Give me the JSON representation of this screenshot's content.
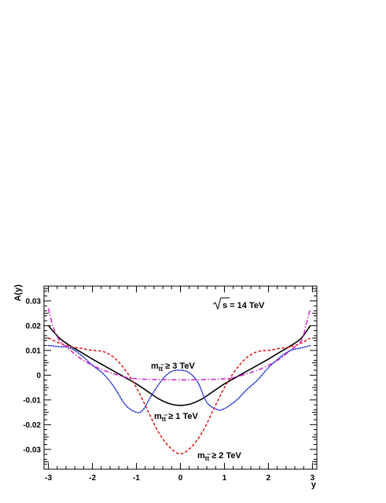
{
  "chart_data": {
    "type": "line",
    "xlabel": "y",
    "ylabel": "A(y)",
    "xlim": [
      -3.1,
      3.1
    ],
    "ylim": [
      -0.038,
      0.036
    ],
    "x_ticks": [
      -3,
      -2,
      -1,
      0,
      1,
      2,
      3
    ],
    "x_tick_labels": [
      "-3",
      "-2",
      "-1",
      "0",
      "1",
      "2",
      "3"
    ],
    "y_ticks": [
      -0.03,
      -0.02,
      -0.01,
      0,
      0.01,
      0.02,
      0.03
    ],
    "y_tick_labels": [
      "-0.03",
      "-0.02",
      "-0.01",
      "0",
      "0.01",
      "0.02",
      "0.03"
    ],
    "grid": false,
    "annotations": {
      "energy": {
        "prefix": "s",
        "suffix": " = 14 TeV"
      },
      "cut_3": {
        "main": "m",
        "sub": "t",
        "sub2": "t",
        "rest": " ≥ 3 TeV"
      },
      "cut_1": {
        "main": "m",
        "sub": "t",
        "sub2": "t",
        "rest": " ≥ 1 TeV"
      },
      "cut_2": {
        "main": "m",
        "sub": "t",
        "sub2": "t",
        "rest": " ≥ 2 TeV"
      }
    },
    "series": [
      {
        "id": "inclusive",
        "color": "#000000",
        "style": "solid",
        "points": [
          [
            -3.0,
            0.02
          ],
          [
            -2.75,
            0.015
          ],
          [
            -2.5,
            0.0118
          ],
          [
            -2.25,
            0.0092
          ],
          [
            -2.0,
            0.0065
          ],
          [
            -1.75,
            0.004
          ],
          [
            -1.5,
            0.0015
          ],
          [
            -1.25,
            -0.001
          ],
          [
            -1.0,
            -0.0035
          ],
          [
            -0.75,
            -0.0065
          ],
          [
            -0.5,
            -0.0095
          ],
          [
            -0.25,
            -0.0115
          ],
          [
            0.0,
            -0.0122
          ],
          [
            0.25,
            -0.0115
          ],
          [
            0.5,
            -0.0095
          ],
          [
            0.75,
            -0.0065
          ],
          [
            1.0,
            -0.0035
          ],
          [
            1.25,
            -0.001
          ],
          [
            1.5,
            0.0015
          ],
          [
            1.75,
            0.004
          ],
          [
            2.0,
            0.0065
          ],
          [
            2.25,
            0.0092
          ],
          [
            2.5,
            0.0118
          ],
          [
            2.75,
            0.015
          ],
          [
            2.95,
            0.02
          ]
        ]
      },
      {
        "id": "mtt_gt_1",
        "color": "#2233cc",
        "style": "dotted",
        "points": [
          [
            -3.0,
            0.012
          ],
          [
            -2.75,
            0.0115
          ],
          [
            -2.5,
            0.011
          ],
          [
            -2.25,
            0.008
          ],
          [
            -2.0,
            0.004
          ],
          [
            -1.75,
            0.0005
          ],
          [
            -1.5,
            -0.005
          ],
          [
            -1.25,
            -0.012
          ],
          [
            -1.0,
            -0.015
          ],
          [
            -0.85,
            -0.014
          ],
          [
            -0.65,
            -0.008
          ],
          [
            -0.4,
            -0.0015
          ],
          [
            -0.2,
            0.0015
          ],
          [
            0.0,
            0.002
          ],
          [
            0.2,
            0.001
          ],
          [
            0.4,
            -0.003
          ],
          [
            0.6,
            -0.011
          ],
          [
            0.85,
            -0.014
          ],
          [
            1.0,
            -0.0135
          ],
          [
            1.25,
            -0.0105
          ],
          [
            1.5,
            -0.006
          ],
          [
            1.75,
            -0.002
          ],
          [
            2.0,
            0.003
          ],
          [
            2.25,
            0.007
          ],
          [
            2.5,
            0.01
          ],
          [
            2.75,
            0.011
          ],
          [
            2.95,
            0.012
          ]
        ]
      },
      {
        "id": "mtt_gt_2",
        "color": "#e01010",
        "style": "dashed",
        "points": [
          [
            -3.0,
            0.015
          ],
          [
            -2.75,
            0.013
          ],
          [
            -2.5,
            0.0115
          ],
          [
            -2.25,
            0.0108
          ],
          [
            -2.0,
            0.01
          ],
          [
            -1.75,
            0.0095
          ],
          [
            -1.5,
            0.007
          ],
          [
            -1.25,
            0.002
          ],
          [
            -1.0,
            -0.005
          ],
          [
            -0.75,
            -0.014
          ],
          [
            -0.5,
            -0.023
          ],
          [
            -0.25,
            -0.029
          ],
          [
            0.0,
            -0.0318
          ],
          [
            0.25,
            -0.029
          ],
          [
            0.5,
            -0.023
          ],
          [
            0.75,
            -0.014
          ],
          [
            1.0,
            -0.005
          ],
          [
            1.25,
            0.002
          ],
          [
            1.5,
            0.007
          ],
          [
            1.75,
            0.0095
          ],
          [
            2.0,
            0.01
          ],
          [
            2.25,
            0.0108
          ],
          [
            2.5,
            0.0115
          ],
          [
            2.75,
            0.013
          ],
          [
            2.95,
            0.015
          ]
        ]
      },
      {
        "id": "mtt_gt_3",
        "color": "#d020d0",
        "style": "dashdot",
        "points": [
          [
            -3.0,
            0.027
          ],
          [
            -2.9,
            0.02
          ],
          [
            -2.75,
            0.014
          ],
          [
            -2.5,
            0.01
          ],
          [
            -2.25,
            0.0065
          ],
          [
            -2.0,
            0.004
          ],
          [
            -1.75,
            0.002
          ],
          [
            -1.5,
            0.0005
          ],
          [
            -1.25,
            -0.0008
          ],
          [
            -1.0,
            -0.0015
          ],
          [
            -0.5,
            -0.0018
          ],
          [
            0.0,
            -0.0019
          ],
          [
            0.5,
            -0.0018
          ],
          [
            1.0,
            -0.0015
          ],
          [
            1.25,
            -0.0008
          ],
          [
            1.5,
            0.0005
          ],
          [
            1.75,
            0.002
          ],
          [
            2.0,
            0.004
          ],
          [
            2.25,
            0.0065
          ],
          [
            2.5,
            0.01
          ],
          [
            2.75,
            0.014
          ],
          [
            2.85,
            0.02
          ],
          [
            2.95,
            0.027
          ]
        ]
      }
    ]
  }
}
